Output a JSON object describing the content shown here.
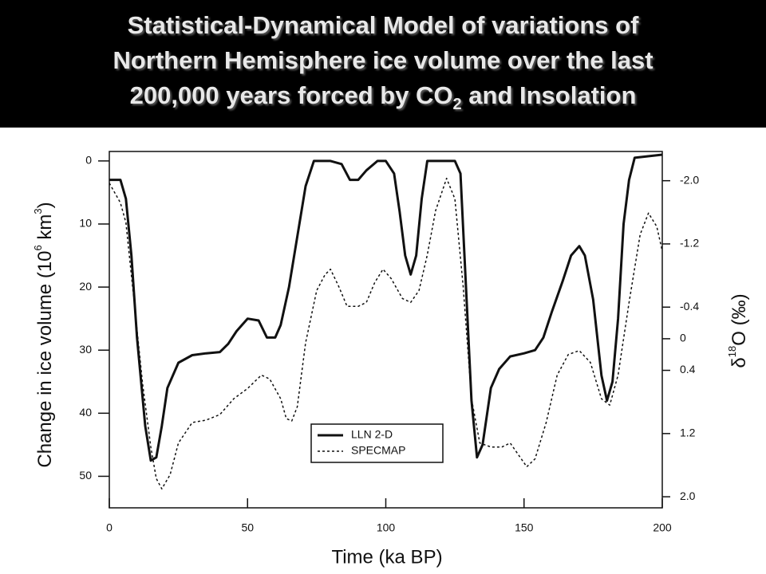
{
  "chart_data": {
    "type": "line",
    "title": {
      "line1": "Statistical-Dynamical Model of variations of",
      "line2": "Northern Hemisphere ice volume over the last",
      "line3_before": "200,000 years forced by CO",
      "line3_sub": "2",
      "line3_after": " and Insolation"
    },
    "xlabel": "Time (ka BP)",
    "ylabel": {
      "before": "Change in ice volume (10",
      "sup1": "6",
      "mid": " km",
      "sup2": "3",
      "after": ")"
    },
    "y2label": {
      "before": "δ",
      "sup": "18",
      "after": "O (‰)"
    },
    "xlim": [
      0,
      200
    ],
    "xticks": [
      0,
      50,
      100,
      150,
      200
    ],
    "ylim": [
      -1.5,
      55
    ],
    "yticks": [
      0,
      10,
      20,
      30,
      40,
      50
    ],
    "y_inverted": true,
    "y2lim": [
      -2.37,
      2.14
    ],
    "y2_inverted": true,
    "y2ticks": [
      {
        "value": -2,
        "label": "-2.0"
      },
      -1.2,
      -0.4,
      0,
      0.4,
      1.2,
      {
        "value": 2,
        "label": "2.0"
      }
    ],
    "legend": "lower center",
    "series": [
      {
        "name": "LLN 2-D",
        "color": "#111111",
        "style": "solid",
        "axis": "y",
        "x": [
          0,
          4,
          6,
          8,
          10,
          13,
          15,
          17,
          19,
          21,
          25,
          30,
          35,
          40,
          43,
          46,
          48,
          50,
          54,
          57,
          60,
          62,
          65,
          68,
          71,
          74,
          80,
          84,
          87,
          90,
          93,
          97,
          100,
          103,
          105,
          107,
          109,
          111,
          113,
          115,
          120,
          125,
          127,
          129,
          131,
          133,
          135,
          138,
          141,
          145,
          150,
          154,
          157,
          160,
          164,
          167,
          170,
          172,
          175,
          178,
          180,
          182,
          184,
          186,
          188,
          190,
          200
        ],
        "values": [
          3,
          3,
          6,
          15,
          28,
          42,
          47.5,
          47,
          42,
          36,
          32,
          30.8,
          30.5,
          30.3,
          29,
          27,
          26,
          25,
          25.3,
          28,
          28,
          26,
          20,
          12,
          4,
          0,
          0,
          0.5,
          3,
          3,
          1.5,
          0,
          0,
          2,
          8,
          15,
          18,
          15,
          6,
          0,
          0,
          0,
          2,
          20,
          38,
          47,
          45,
          36,
          33,
          31,
          30.5,
          30,
          28,
          24,
          19,
          15,
          13.5,
          15,
          22,
          34,
          38,
          35,
          25,
          10,
          3,
          -0.5,
          -1
        ]
      },
      {
        "name": "SPECMAP",
        "color": "#111111",
        "style": "dotted",
        "axis": "y2",
        "x": [
          0,
          4,
          6,
          9,
          12,
          15,
          17,
          19,
          22,
          25,
          30,
          35,
          40,
          45,
          50,
          55,
          58,
          62,
          64,
          66,
          68,
          71,
          75,
          78,
          80,
          83,
          86,
          90,
          93,
          96,
          99,
          102,
          106,
          109,
          112,
          115,
          118,
          122,
          125,
          128,
          131,
          134,
          138,
          142,
          145,
          148,
          151,
          154,
          158,
          162,
          166,
          170,
          174,
          178,
          181,
          184,
          188,
          192,
          195,
          198,
          200
        ],
        "values": [
          -1.97,
          -1.72,
          -1.47,
          -0.46,
          0.56,
          1.37,
          1.77,
          1.9,
          1.72,
          1.32,
          1.06,
          1.03,
          0.96,
          0.76,
          0.63,
          0.46,
          0.51,
          0.76,
          1.01,
          1.04,
          0.86,
          0.05,
          -0.61,
          -0.81,
          -0.88,
          -0.66,
          -0.41,
          -0.41,
          -0.46,
          -0.71,
          -0.88,
          -0.76,
          -0.51,
          -0.46,
          -0.61,
          -1.06,
          -1.62,
          -2.03,
          -1.77,
          -0.66,
          0.76,
          1.32,
          1.37,
          1.37,
          1.32,
          1.47,
          1.62,
          1.52,
          1.06,
          0.46,
          0.2,
          0.15,
          0.3,
          0.76,
          0.84,
          0.46,
          -0.46,
          -1.32,
          -1.59,
          -1.42,
          -1.11
        ]
      }
    ]
  }
}
